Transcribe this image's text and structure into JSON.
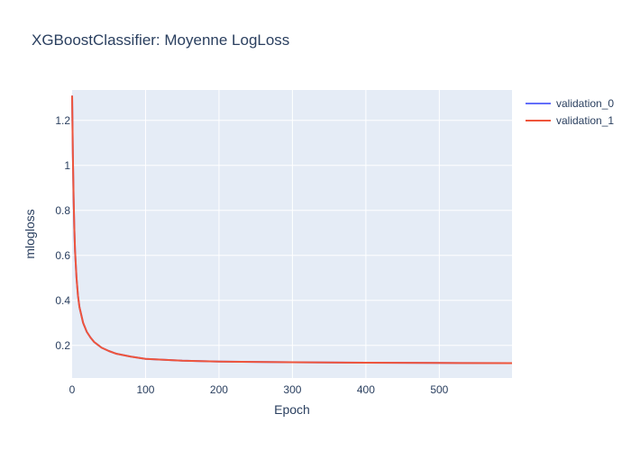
{
  "chart_data": {
    "type": "line",
    "title": "XGBoostClassifier: Moyenne LogLoss",
    "xlabel": "Epoch",
    "ylabel": "mlogloss",
    "xlim": [
      0,
      599
    ],
    "ylim": [
      0.055,
      1.335
    ],
    "x_ticks": [
      0,
      100,
      200,
      300,
      400,
      500
    ],
    "x_tick_labels": [
      "0",
      "100",
      "200",
      "300",
      "400",
      "500"
    ],
    "y_ticks": [
      0.2,
      0.4,
      0.6,
      0.8,
      1,
      1.2
    ],
    "y_tick_labels": [
      "0.2",
      "0.4",
      "0.6",
      "0.8",
      "1",
      "1.2"
    ],
    "grid": true,
    "legend_position": "top-right",
    "colors": {
      "plot_bg": "#e5ecf6",
      "validation_0": "#636efa",
      "validation_1": "#ef553b"
    },
    "series": [
      {
        "name": "validation_0",
        "x": [
          0,
          1,
          2,
          3,
          4,
          6,
          8,
          10,
          15,
          20,
          25,
          30,
          40,
          50,
          60,
          80,
          100,
          150,
          200,
          300,
          400,
          500,
          599
        ],
        "y": [
          1.31,
          1.05,
          0.86,
          0.72,
          0.62,
          0.5,
          0.42,
          0.37,
          0.3,
          0.26,
          0.235,
          0.215,
          0.19,
          0.175,
          0.163,
          0.15,
          0.14,
          0.132,
          0.128,
          0.125,
          0.123,
          0.122,
          0.121
        ]
      },
      {
        "name": "validation_1",
        "x": [
          0,
          1,
          2,
          3,
          4,
          6,
          8,
          10,
          15,
          20,
          25,
          30,
          40,
          50,
          60,
          80,
          100,
          150,
          200,
          300,
          400,
          500,
          599
        ],
        "y": [
          1.31,
          1.05,
          0.86,
          0.72,
          0.62,
          0.5,
          0.42,
          0.37,
          0.3,
          0.26,
          0.235,
          0.215,
          0.19,
          0.175,
          0.163,
          0.15,
          0.14,
          0.132,
          0.128,
          0.125,
          0.123,
          0.122,
          0.121
        ]
      }
    ]
  }
}
